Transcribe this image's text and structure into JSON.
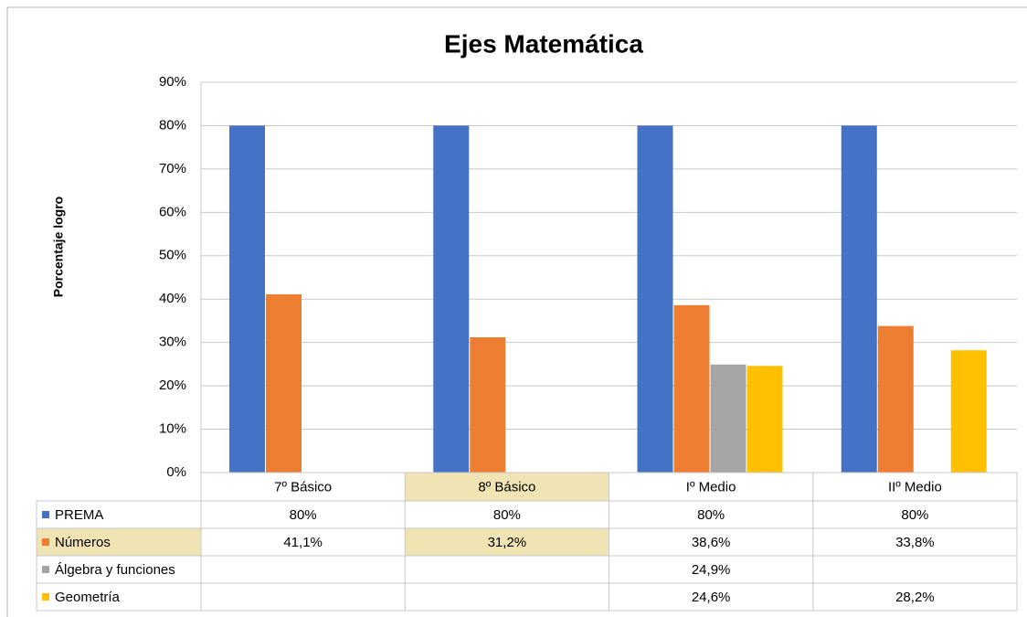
{
  "chart_data": {
    "type": "bar",
    "title": "Ejes Matemática",
    "y_label": "Porcentaje logro",
    "categories": [
      "7º Básico",
      "8º Básico",
      "Iº Medio",
      "IIº Medio"
    ],
    "series": [
      {
        "name": "PREMA",
        "color": "#4472c4",
        "values": [
          80,
          80,
          80,
          80
        ],
        "value_labels": [
          "80%",
          "80%",
          "80%",
          "80%"
        ]
      },
      {
        "name": "Números",
        "color": "#ed7d31",
        "values": [
          41.1,
          31.2,
          38.6,
          33.8
        ],
        "value_labels": [
          "41,1%",
          "31,2%",
          "38,6%",
          "33,8%"
        ]
      },
      {
        "name": "Álgebra y funciones",
        "color": "#a5a5a5",
        "values": [
          null,
          null,
          24.9,
          null
        ],
        "value_labels": [
          null,
          null,
          "24,9%",
          null
        ]
      },
      {
        "name": "Geometría",
        "color": "#ffc000",
        "values": [
          null,
          null,
          24.6,
          28.2
        ],
        "value_labels": [
          null,
          null,
          "24,6%",
          "28,2%"
        ]
      }
    ],
    "ylim": [
      0,
      90
    ],
    "yticks": [
      {
        "value": 0,
        "label": "0%"
      },
      {
        "value": 10,
        "label": "10%"
      },
      {
        "value": 20,
        "label": "20%"
      },
      {
        "value": 30,
        "label": "30%"
      },
      {
        "value": 40,
        "label": "40%"
      },
      {
        "value": 50,
        "label": "50%"
      },
      {
        "value": 60,
        "label": "60%"
      },
      {
        "value": 70,
        "label": "70%"
      },
      {
        "value": 80,
        "label": "80%"
      },
      {
        "value": 90,
        "label": "90%"
      }
    ],
    "grid": true,
    "data_table": true
  }
}
